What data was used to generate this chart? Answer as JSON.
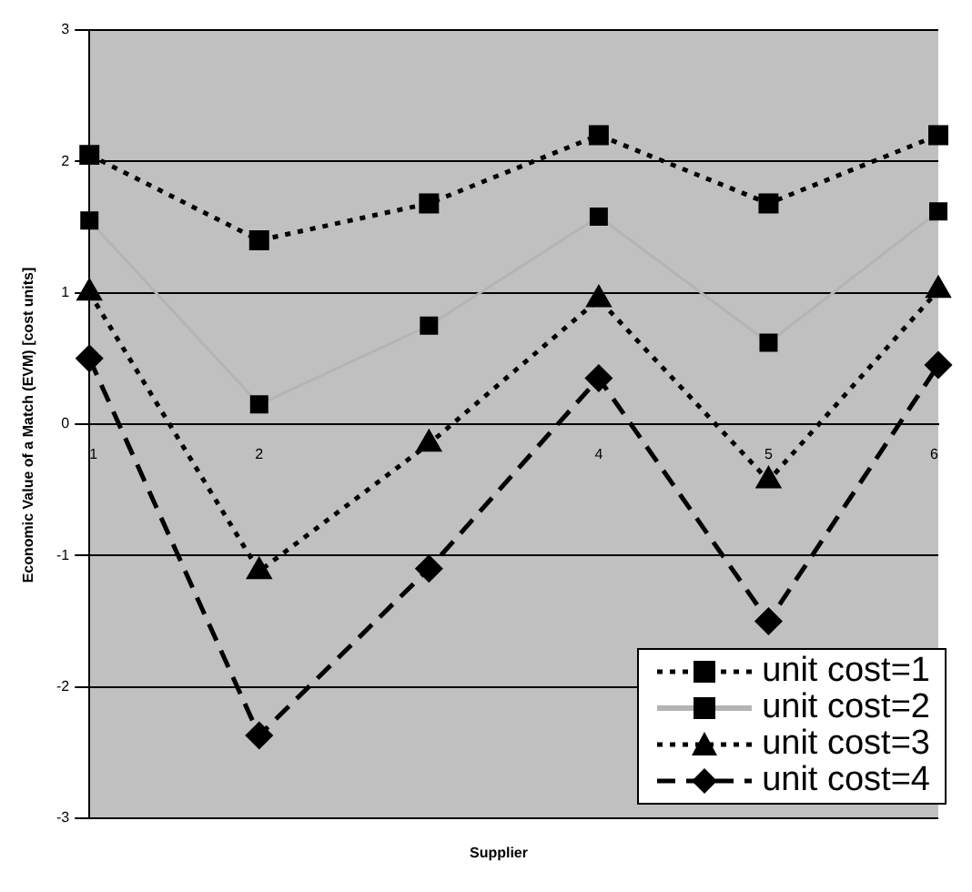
{
  "chart_data": {
    "type": "line",
    "xlabel": "Supplier",
    "ylabel": "Economic Value of a Match (EVM) [cost units]",
    "categories": [
      "1",
      "2",
      null,
      "4",
      "5",
      "6"
    ],
    "series": [
      {
        "name": "unit cost=1",
        "color": "#000000",
        "marker": "square",
        "line_style": "dotted",
        "values": [
          2.05,
          1.4,
          1.68,
          2.2,
          1.68,
          2.2
        ]
      },
      {
        "name": "unit cost=2",
        "color": "#b4b4b4",
        "marker": "square",
        "line_style": "solid",
        "values": [
          1.55,
          0.15,
          0.75,
          1.58,
          0.62,
          1.62
        ]
      },
      {
        "name": "unit cost=3",
        "color": "#000000",
        "marker": "triangle",
        "line_style": "dotted",
        "values": [
          1.0,
          -1.12,
          -0.15,
          0.95,
          -0.43,
          1.02
        ]
      },
      {
        "name": "unit cost=4",
        "color": "#000000",
        "marker": "diamond",
        "line_style": "dashed",
        "values": [
          0.5,
          -2.37,
          -1.1,
          0.35,
          -1.5,
          0.45
        ]
      }
    ],
    "ylim": [
      -3,
      3
    ],
    "yticks": [
      -3,
      -2,
      -1,
      0,
      1,
      2,
      3
    ],
    "grid": "y",
    "legend": "bottom right"
  }
}
